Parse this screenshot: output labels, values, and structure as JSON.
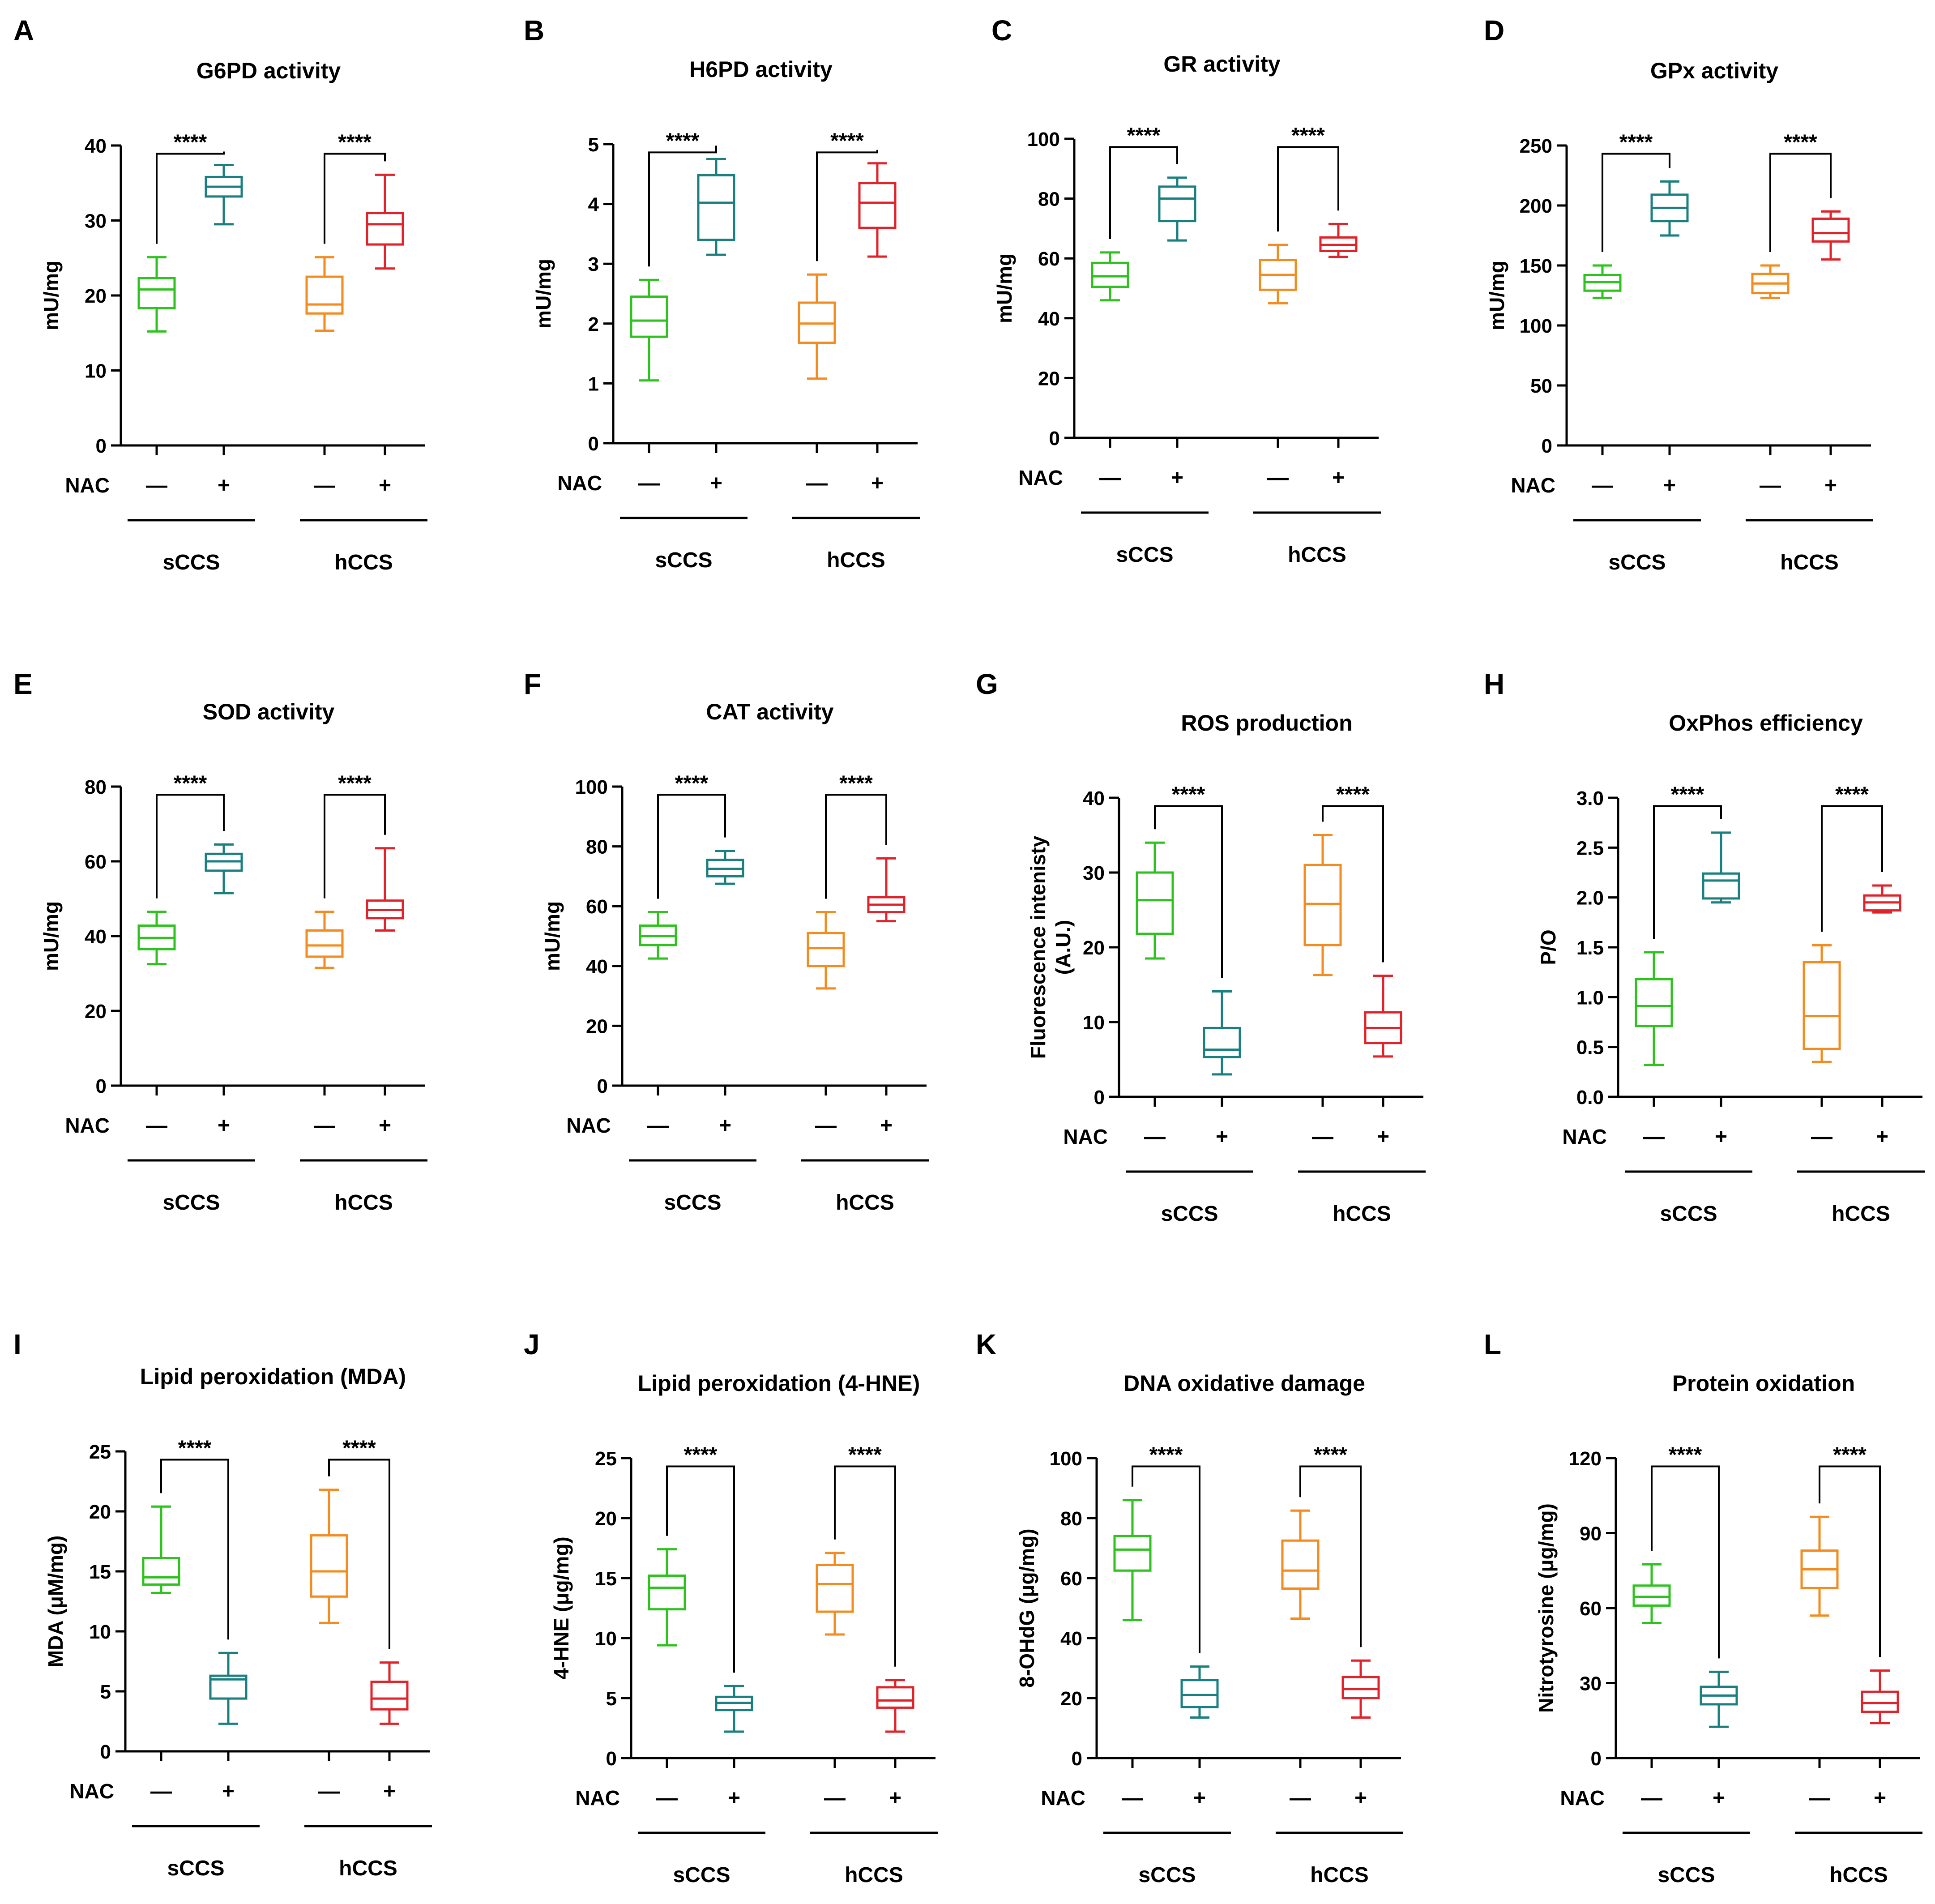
{
  "figure": {
    "nac_label": "NAC",
    "minus_symbol": "—",
    "plus_symbol": "+",
    "groups": [
      "sCCS",
      "hCCS"
    ],
    "colors": {
      "sCCS_minus": "#2ec21e",
      "sCCS_plus": "#1a7f7f",
      "hCCS_minus": "#f38b1f",
      "hCCS_plus": "#e0232a",
      "axis": "#000000"
    }
  },
  "chart_data": [
    {
      "panel": "A",
      "type": "box",
      "title": "G6PD activity",
      "ylabel": "mU/mg",
      "ylim": [
        0,
        40
      ],
      "yticks": [
        0,
        10,
        20,
        30,
        40
      ],
      "tick_labels": [
        "0",
        "10",
        "20",
        "30",
        "40"
      ],
      "boxes": [
        {
          "group": "sCCS",
          "nac": "—",
          "min": 15.2,
          "q1": 18.3,
          "median": 20.8,
          "q3": 22.3,
          "max": 25.1
        },
        {
          "group": "sCCS",
          "nac": "+",
          "min": 29.5,
          "q1": 33.2,
          "median": 34.5,
          "q3": 35.8,
          "max": 37.4
        },
        {
          "group": "hCCS",
          "nac": "—",
          "min": 15.3,
          "q1": 17.6,
          "median": 18.8,
          "q3": 22.5,
          "max": 25.1
        },
        {
          "group": "hCCS",
          "nac": "+",
          "min": 23.6,
          "q1": 26.8,
          "median": 29.5,
          "q3": 31.0,
          "max": 36.1
        }
      ],
      "significance": [
        {
          "pair": [
            0,
            1
          ],
          "label": "****"
        },
        {
          "pair": [
            2,
            3
          ],
          "label": "****"
        }
      ]
    },
    {
      "panel": "B",
      "type": "box",
      "title": "H6PD activity",
      "ylabel": "mU/mg",
      "ylim": [
        0,
        5
      ],
      "yticks": [
        0,
        1,
        2,
        3,
        4,
        5
      ],
      "tick_labels": [
        "0",
        "1",
        "2",
        "3",
        "4",
        "5"
      ],
      "boxes": [
        {
          "group": "sCCS",
          "nac": "—",
          "min": 1.05,
          "q1": 1.78,
          "median": 2.05,
          "q3": 2.45,
          "max": 2.73
        },
        {
          "group": "sCCS",
          "nac": "+",
          "min": 3.15,
          "q1": 3.4,
          "median": 4.02,
          "q3": 4.48,
          "max": 4.75
        },
        {
          "group": "hCCS",
          "nac": "—",
          "min": 1.08,
          "q1": 1.68,
          "median": 2.0,
          "q3": 2.35,
          "max": 2.82
        },
        {
          "group": "hCCS",
          "nac": "+",
          "min": 3.12,
          "q1": 3.6,
          "median": 4.02,
          "q3": 4.35,
          "max": 4.68
        }
      ],
      "significance": [
        {
          "pair": [
            0,
            1
          ],
          "label": "****"
        },
        {
          "pair": [
            2,
            3
          ],
          "label": "****"
        }
      ]
    },
    {
      "panel": "C",
      "type": "box",
      "title": "GR activity",
      "ylabel": "mU/mg",
      "ylim": [
        0,
        100
      ],
      "yticks": [
        0,
        20,
        40,
        60,
        80,
        100
      ],
      "tick_labels": [
        "0",
        "20",
        "40",
        "60",
        "80",
        "100"
      ],
      "boxes": [
        {
          "group": "sCCS",
          "nac": "—",
          "min": 46,
          "q1": 50.5,
          "median": 54,
          "q3": 58.5,
          "max": 62
        },
        {
          "group": "sCCS",
          "nac": "+",
          "min": 66,
          "q1": 72.5,
          "median": 80,
          "q3": 84,
          "max": 87
        },
        {
          "group": "hCCS",
          "nac": "—",
          "min": 45,
          "q1": 49.5,
          "median": 54.5,
          "q3": 59.5,
          "max": 64.5
        },
        {
          "group": "hCCS",
          "nac": "+",
          "min": 60.5,
          "q1": 62.5,
          "median": 64.5,
          "q3": 67,
          "max": 71.5
        }
      ],
      "significance": [
        {
          "pair": [
            0,
            1
          ],
          "label": "****"
        },
        {
          "pair": [
            2,
            3
          ],
          "label": "****"
        }
      ]
    },
    {
      "panel": "D",
      "type": "box",
      "title": "GPx activity",
      "ylabel": "mU/mg",
      "ylim": [
        0,
        250
      ],
      "yticks": [
        0,
        50,
        100,
        150,
        200,
        250
      ],
      "tick_labels": [
        "0",
        "50",
        "100",
        "150",
        "200",
        "250"
      ],
      "boxes": [
        {
          "group": "sCCS",
          "nac": "—",
          "min": 123,
          "q1": 129,
          "median": 136,
          "q3": 142,
          "max": 150
        },
        {
          "group": "sCCS",
          "nac": "+",
          "min": 175,
          "q1": 187,
          "median": 198,
          "q3": 209,
          "max": 220
        },
        {
          "group": "hCCS",
          "nac": "—",
          "min": 123,
          "q1": 127,
          "median": 135,
          "q3": 143,
          "max": 150
        },
        {
          "group": "hCCS",
          "nac": "+",
          "min": 155,
          "q1": 170,
          "median": 177,
          "q3": 189,
          "max": 195
        }
      ],
      "significance": [
        {
          "pair": [
            0,
            1
          ],
          "label": "****"
        },
        {
          "pair": [
            2,
            3
          ],
          "label": "****"
        }
      ]
    },
    {
      "panel": "E",
      "type": "box",
      "title": "SOD activity",
      "ylabel": "mU/mg",
      "ylim": [
        0,
        80
      ],
      "yticks": [
        0,
        20,
        40,
        60,
        80
      ],
      "tick_labels": [
        "0",
        "20",
        "40",
        "60",
        "80"
      ],
      "boxes": [
        {
          "group": "sCCS",
          "nac": "—",
          "min": 32.5,
          "q1": 36.5,
          "median": 39.5,
          "q3": 42.8,
          "max": 46.5
        },
        {
          "group": "sCCS",
          "nac": "+",
          "min": 51.5,
          "q1": 57.5,
          "median": 60,
          "q3": 62,
          "max": 64.5
        },
        {
          "group": "hCCS",
          "nac": "—",
          "min": 31.5,
          "q1": 34.5,
          "median": 37.5,
          "q3": 41.5,
          "max": 46.5
        },
        {
          "group": "hCCS",
          "nac": "+",
          "min": 41.5,
          "q1": 44.8,
          "median": 47,
          "q3": 49.5,
          "max": 63.5
        }
      ],
      "significance": [
        {
          "pair": [
            0,
            1
          ],
          "label": "****"
        },
        {
          "pair": [
            2,
            3
          ],
          "label": "****"
        }
      ]
    },
    {
      "panel": "F",
      "type": "box",
      "title": "CAT activity",
      "ylabel": "mU/mg",
      "ylim": [
        0,
        100
      ],
      "yticks": [
        0,
        20,
        40,
        60,
        80,
        100
      ],
      "tick_labels": [
        "0",
        "20",
        "40",
        "60",
        "80",
        "100"
      ],
      "boxes": [
        {
          "group": "sCCS",
          "nac": "—",
          "min": 42.5,
          "q1": 47,
          "median": 50,
          "q3": 53.5,
          "max": 58
        },
        {
          "group": "sCCS",
          "nac": "+",
          "min": 67.5,
          "q1": 70,
          "median": 72.5,
          "q3": 75.5,
          "max": 78.5
        },
        {
          "group": "hCCS",
          "nac": "—",
          "min": 32.5,
          "q1": 40,
          "median": 46,
          "q3": 51,
          "max": 58
        },
        {
          "group": "hCCS",
          "nac": "+",
          "min": 55,
          "q1": 58,
          "median": 60.5,
          "q3": 63,
          "max": 76
        }
      ],
      "significance": [
        {
          "pair": [
            0,
            1
          ],
          "label": "****"
        },
        {
          "pair": [
            2,
            3
          ],
          "label": "****"
        }
      ]
    },
    {
      "panel": "G",
      "type": "box",
      "title": "ROS production",
      "ylabel": "Fluorescence intenisty (A.U.)",
      "ylabel_lines": [
        "Fluorescence intenisty",
        "(A.U.)"
      ],
      "ylim": [
        0,
        40
      ],
      "yticks": [
        0,
        10,
        20,
        30,
        40
      ],
      "tick_labels": [
        "0",
        "10",
        "20",
        "30",
        "40"
      ],
      "boxes": [
        {
          "group": "sCCS",
          "nac": "—",
          "min": 18.5,
          "q1": 21.8,
          "median": 26.3,
          "q3": 30.0,
          "max": 34.0
        },
        {
          "group": "sCCS",
          "nac": "+",
          "min": 3.0,
          "q1": 5.3,
          "median": 6.3,
          "q3": 9.2,
          "max": 14.1
        },
        {
          "group": "hCCS",
          "nac": "—",
          "min": 16.3,
          "q1": 20.3,
          "median": 25.8,
          "q3": 31.0,
          "max": 35.0
        },
        {
          "group": "hCCS",
          "nac": "+",
          "min": 5.4,
          "q1": 7.2,
          "median": 9.2,
          "q3": 11.3,
          "max": 16.2
        }
      ],
      "significance": [
        {
          "pair": [
            0,
            1
          ],
          "label": "****"
        },
        {
          "pair": [
            2,
            3
          ],
          "label": "****"
        }
      ]
    },
    {
      "panel": "H",
      "type": "box",
      "title": "OxPhos efficiency",
      "ylabel": "P/O",
      "ylim": [
        0,
        3.0
      ],
      "yticks": [
        0,
        0.5,
        1.0,
        1.5,
        2.0,
        2.5,
        3.0
      ],
      "tick_labels": [
        "0.0",
        "0.5",
        "1.0",
        "1.5",
        "2.0",
        "2.5",
        "3.0"
      ],
      "boxes": [
        {
          "group": "sCCS",
          "nac": "—",
          "min": 0.32,
          "q1": 0.71,
          "median": 0.91,
          "q3": 1.18,
          "max": 1.45
        },
        {
          "group": "sCCS",
          "nac": "+",
          "min": 1.95,
          "q1": 1.99,
          "median": 2.17,
          "q3": 2.24,
          "max": 2.65
        },
        {
          "group": "hCCS",
          "nac": "—",
          "min": 0.35,
          "q1": 0.48,
          "median": 0.81,
          "q3": 1.35,
          "max": 1.52
        },
        {
          "group": "hCCS",
          "nac": "+",
          "min": 1.85,
          "q1": 1.87,
          "median": 1.95,
          "q3": 2.02,
          "max": 2.12
        }
      ],
      "significance": [
        {
          "pair": [
            0,
            1
          ],
          "label": "****"
        },
        {
          "pair": [
            2,
            3
          ],
          "label": "****"
        }
      ]
    },
    {
      "panel": "I",
      "type": "box",
      "title": "Lipid peroxidation (MDA)",
      "ylabel": "MDA (μM/mg)",
      "ylim": [
        0,
        25
      ],
      "yticks": [
        0,
        5,
        10,
        15,
        20,
        25
      ],
      "tick_labels": [
        "0",
        "5",
        "10",
        "15",
        "20",
        "25"
      ],
      "boxes": [
        {
          "group": "sCCS",
          "nac": "—",
          "min": 13.2,
          "q1": 13.9,
          "median": 14.5,
          "q3": 16.1,
          "max": 20.4
        },
        {
          "group": "sCCS",
          "nac": "+",
          "min": 2.3,
          "q1": 4.4,
          "median": 6.0,
          "q3": 6.3,
          "max": 8.2
        },
        {
          "group": "hCCS",
          "nac": "—",
          "min": 10.7,
          "q1": 12.9,
          "median": 15.0,
          "q3": 18.0,
          "max": 21.8
        },
        {
          "group": "hCCS",
          "nac": "+",
          "min": 2.3,
          "q1": 3.5,
          "median": 4.4,
          "q3": 5.8,
          "max": 7.4
        }
      ],
      "significance": [
        {
          "pair": [
            0,
            1
          ],
          "label": "****"
        },
        {
          "pair": [
            2,
            3
          ],
          "label": "****"
        }
      ]
    },
    {
      "panel": "J",
      "type": "box",
      "title": "Lipid peroxidation (4-HNE)",
      "ylabel": "4-HNE (μg/mg)",
      "ylim": [
        0,
        25
      ],
      "yticks": [
        0,
        5,
        10,
        15,
        20,
        25
      ],
      "tick_labels": [
        "0",
        "5",
        "10",
        "15",
        "20",
        "25"
      ],
      "boxes": [
        {
          "group": "sCCS",
          "nac": "—",
          "min": 9.4,
          "q1": 12.4,
          "median": 14.2,
          "q3": 15.2,
          "max": 17.4
        },
        {
          "group": "sCCS",
          "nac": "+",
          "min": 2.2,
          "q1": 4.0,
          "median": 4.6,
          "q3": 5.1,
          "max": 6.0
        },
        {
          "group": "hCCS",
          "nac": "—",
          "min": 10.3,
          "q1": 12.2,
          "median": 14.5,
          "q3": 16.1,
          "max": 17.1
        },
        {
          "group": "hCCS",
          "nac": "+",
          "min": 2.2,
          "q1": 4.2,
          "median": 4.8,
          "q3": 5.9,
          "max": 6.5
        }
      ],
      "significance": [
        {
          "pair": [
            0,
            1
          ],
          "label": "****"
        },
        {
          "pair": [
            2,
            3
          ],
          "label": "****"
        }
      ]
    },
    {
      "panel": "K",
      "type": "box",
      "title": "DNA oxidative damage",
      "ylabel": "8-OHdG (μg/mg)",
      "ylim": [
        0,
        100
      ],
      "yticks": [
        0,
        20,
        40,
        60,
        80,
        100
      ],
      "tick_labels": [
        "0",
        "20",
        "40",
        "60",
        "80",
        "100"
      ],
      "boxes": [
        {
          "group": "sCCS",
          "nac": "—",
          "min": 46,
          "q1": 62.5,
          "median": 69.5,
          "q3": 74,
          "max": 86
        },
        {
          "group": "sCCS",
          "nac": "+",
          "min": 13.5,
          "q1": 17,
          "median": 21,
          "q3": 26,
          "max": 30.5
        },
        {
          "group": "hCCS",
          "nac": "—",
          "min": 46.5,
          "q1": 56.5,
          "median": 62.5,
          "q3": 72.5,
          "max": 82.5
        },
        {
          "group": "hCCS",
          "nac": "+",
          "min": 13.5,
          "q1": 20,
          "median": 23,
          "q3": 27,
          "max": 32.5
        }
      ],
      "significance": [
        {
          "pair": [
            0,
            1
          ],
          "label": "****"
        },
        {
          "pair": [
            2,
            3
          ],
          "label": "****"
        }
      ]
    },
    {
      "panel": "L",
      "type": "box",
      "title": "Protein oxidation",
      "ylabel": "Nitrotyrosine (μg/mg)",
      "ylim": [
        0,
        120
      ],
      "yticks": [
        0,
        30,
        60,
        90,
        120
      ],
      "tick_labels": [
        "0",
        "30",
        "60",
        "90",
        "120"
      ],
      "boxes": [
        {
          "group": "sCCS",
          "nac": "—",
          "min": 54,
          "q1": 61,
          "median": 64.5,
          "q3": 69,
          "max": 77.5
        },
        {
          "group": "sCCS",
          "nac": "+",
          "min": 12.5,
          "q1": 21.5,
          "median": 25,
          "q3": 28.5,
          "max": 34.5
        },
        {
          "group": "hCCS",
          "nac": "—",
          "min": 57,
          "q1": 68,
          "median": 75.5,
          "q3": 83,
          "max": 96.5
        },
        {
          "group": "hCCS",
          "nac": "+",
          "min": 14,
          "q1": 18.5,
          "median": 22,
          "q3": 26.5,
          "max": 35
        }
      ],
      "significance": [
        {
          "pair": [
            0,
            1
          ],
          "label": "****"
        },
        {
          "pair": [
            2,
            3
          ],
          "label": "****"
        }
      ]
    }
  ]
}
